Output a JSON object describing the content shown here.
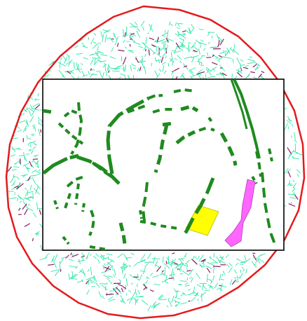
{
  "map": {
    "colors": {
      "background": "#ffffff",
      "boundary": "#e41a1c",
      "outer_lines_primary": "#2ee6a6",
      "outer_lines_secondary": "#8b1a6b",
      "inset_frame": "#000000",
      "roads": "#1f8a1f",
      "yellow_area": "#ffff00",
      "magenta_area": "#ff66ff"
    },
    "features": {
      "boundary": "red-circular-boundary",
      "outer_ring": "scattered-short-line-segments",
      "inset": "rectangular-detail-inset",
      "roads": "dashed-green-road-network",
      "areas": [
        "yellow-polygon",
        "magenta-polygon"
      ]
    }
  }
}
